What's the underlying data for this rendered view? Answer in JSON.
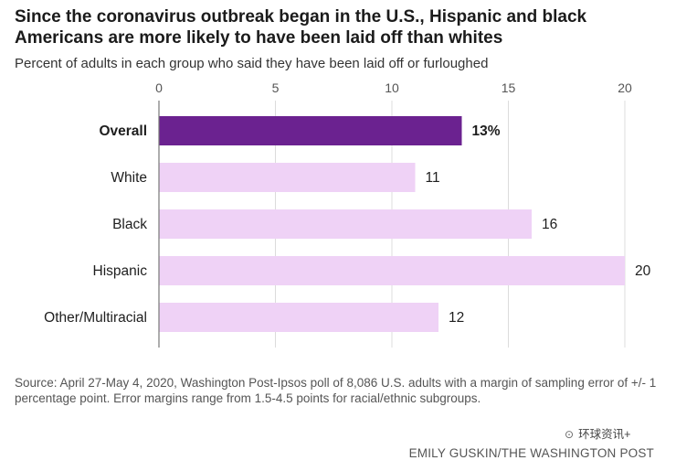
{
  "chart_data": {
    "type": "bar",
    "orientation": "horizontal",
    "title": "Since the coronavirus outbreak began in the U.S., Hispanic and black Americans are more likely to have been laid off than whites",
    "subtitle": "Percent of adults in each group who said they have been laid off or furloughed",
    "categories": [
      "Overall",
      "White",
      "Black",
      "Hispanic",
      "Other/Multiracial"
    ],
    "values": [
      13,
      11,
      16,
      20,
      12
    ],
    "value_labels": [
      "13%",
      "11",
      "16",
      "20",
      "12"
    ],
    "highlight_index": 0,
    "xlim": [
      0,
      20
    ],
    "x_ticks": [
      0,
      5,
      10,
      15,
      20
    ],
    "x_tick_labels": [
      "0",
      "5",
      "10",
      "15",
      "20"
    ],
    "axis_position": "top",
    "grid": true,
    "xlabel": "",
    "ylabel": "",
    "colors": {
      "highlight": "#6b2290",
      "default": "#efd2f6",
      "grid": "#dcdcdc",
      "zero_line": "#777777"
    }
  },
  "source": "Source: April 27-May 4, 2020, Washington Post-Ipsos poll of 8,086 U.S. adults with a margin of sampling error of +/- 1 percentage point. Error margins range from 1.5-4.5 points for racial/ethnic subgroups.",
  "watermark": {
    "icon": "wechat-icon",
    "text": "环球资讯+"
  },
  "credit": "EMILY GUSKIN/THE WASHINGTON POST"
}
